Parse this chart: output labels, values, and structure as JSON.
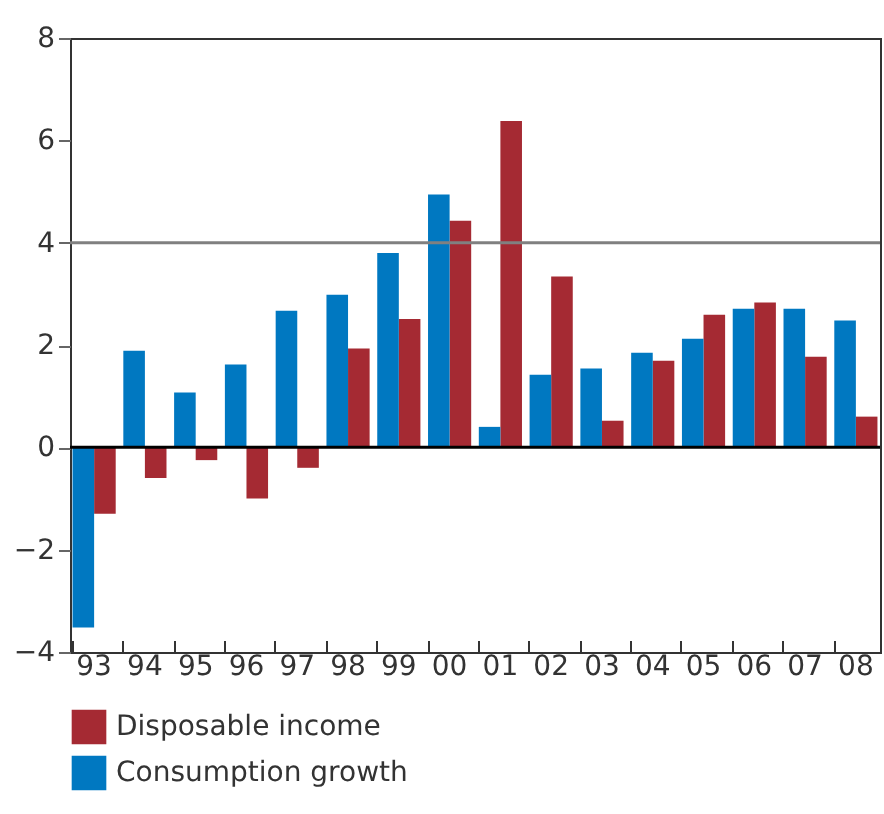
{
  "chart_data": {
    "type": "bar",
    "categories": [
      "93",
      "94",
      "95",
      "96",
      "97",
      "98",
      "99",
      "00",
      "01",
      "02",
      "03",
      "04",
      "05",
      "06",
      "07",
      "08"
    ],
    "series": [
      {
        "name": "Disposable income",
        "color": "#a52a33",
        "values": [
          -1.3,
          -0.6,
          -0.25,
          -1.0,
          -0.4,
          1.93,
          2.51,
          4.43,
          6.38,
          3.34,
          0.52,
          1.69,
          2.59,
          2.83,
          1.77,
          0.6
        ]
      },
      {
        "name": "Consumption growth",
        "color": "#0078c1",
        "values": [
          -3.52,
          1.89,
          1.07,
          1.62,
          2.67,
          2.98,
          3.8,
          4.94,
          0.4,
          1.42,
          1.54,
          1.85,
          2.12,
          2.71,
          2.71,
          2.48
        ]
      }
    ],
    "ylim": [
      -4,
      8
    ],
    "yticks": [
      -4,
      -2,
      0,
      2,
      4,
      6,
      8
    ],
    "legend": "bottom",
    "ref_lines": [
      {
        "axis": "y",
        "value": 4,
        "color": "#808080"
      },
      {
        "axis": "y",
        "value": 0,
        "color": "#000000"
      }
    ]
  }
}
